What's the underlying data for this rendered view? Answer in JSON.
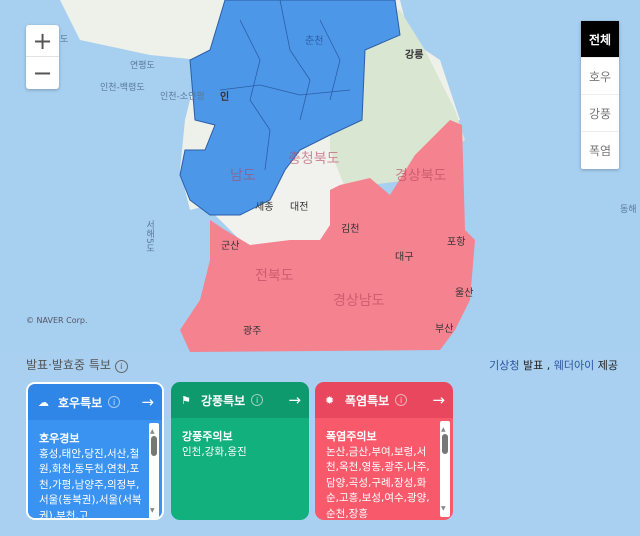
{
  "map": {
    "copyright": "© NAVER Corp.",
    "zoom_in": "+",
    "zoom_out": "−",
    "filters": [
      {
        "label": "전체",
        "active": true
      },
      {
        "label": "호우",
        "active": false
      },
      {
        "label": "강풍",
        "active": false
      },
      {
        "label": "폭염",
        "active": false
      }
    ],
    "labels": {
      "yeonpyeong": "연평도",
      "baengnyeong": "인천-백령도",
      "soyeonpyeong": "인천-소연평",
      "incheon": "인",
      "gangneung": "강릉",
      "chuncheon": "춘천",
      "chungbuk": "충청북도",
      "chungnam": "남도",
      "sejong": "세종",
      "daejeon": "대전",
      "gimcheon": "김천",
      "gunsan": "군산",
      "pohang": "포항",
      "daegu": "대구",
      "jeonbuk": "전북도",
      "gyeongbuk": "경상북도",
      "gyeongnam": "경상남도",
      "ulsan": "울산",
      "gwangju": "광주",
      "busan": "부산",
      "donghae": "동해",
      "west_sea": "서해5도",
      "do": "도"
    },
    "colors": {
      "rain": "#4a90e2",
      "wind": "#1aa87a",
      "heat": "#f47a8a"
    }
  },
  "section": {
    "title": "발표·발효중 특보",
    "info_icon": "i",
    "provider_kma": "기상청",
    "provider_issue": "발표 ,",
    "provider_weatheri": "웨더아이",
    "provider_offer": "제공"
  },
  "cards": [
    {
      "icon": "rain-cloud-icon",
      "title": "호우특보",
      "level": "호우경보",
      "areas": "홍성,태안,당진,서산,철원,화천,동두천,연천,포천,가평,남양주,의정부,서울(동북권),서울(서북권),부천,고",
      "header_color": "#2f86e6",
      "body_color": "#3a93f0"
    },
    {
      "icon": "wind-flag-icon",
      "title": "강풍특보",
      "level": "강풍주의보",
      "areas": "인천,강화,옹진",
      "header_color": "#0e9a6c",
      "body_color": "#12b07c"
    },
    {
      "icon": "sun-icon",
      "title": "폭염특보",
      "level": "폭염주의보",
      "areas": "논산,금산,부여,보령,서천,옥천,영동,광주,나주,담양,곡성,구례,장성,화순,고흥,보성,여수,광양,순천,장흥",
      "header_color": "#e9475d",
      "body_color": "#f85a6c"
    }
  ]
}
